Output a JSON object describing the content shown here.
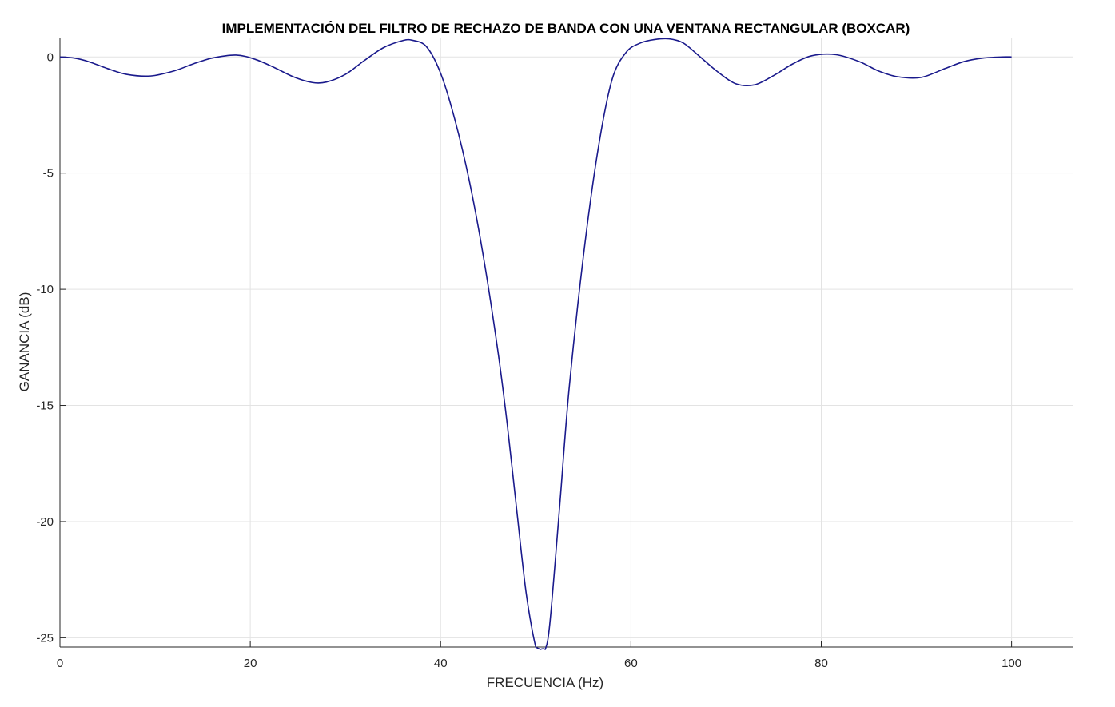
{
  "chart_data": {
    "type": "line",
    "title": "IMPLEMENTACIÓN DEL FILTRO DE RECHAZO DE BANDA CON UNA VENTANA RECTANGULAR (BOXCAR)",
    "xlabel": "FRECUENCIA (Hz)",
    "ylabel": "GANANCIA (dB)",
    "xlim": [
      0,
      106.5
    ],
    "ylim": [
      -25.4,
      0.8
    ],
    "xticks": [
      0,
      20,
      40,
      60,
      80,
      100
    ],
    "yticks": [
      0,
      -5,
      -10,
      -15,
      -20,
      -25
    ],
    "grid": true,
    "line_color": "#1a1a8c",
    "series": [
      {
        "x": [
          0,
          1.5,
          3,
          5,
          7,
          9.5,
          12,
          14,
          16,
          18.5,
          20.5,
          22.5,
          24.5,
          26.5,
          28,
          30,
          32,
          34,
          36,
          37,
          38.5,
          40,
          41.5,
          43,
          44.5,
          46,
          47,
          48,
          49,
          50,
          50.5,
          51,
          51.5,
          52.5,
          53.5,
          55,
          56.5,
          58,
          59.5,
          61,
          62.5,
          64,
          65.5,
          67,
          69,
          71,
          73,
          75,
          77,
          79,
          81.5,
          84,
          86,
          88,
          90.5,
          93,
          95,
          97,
          99,
          100
        ],
        "y": [
          0,
          -0.05,
          -0.2,
          -0.5,
          -0.75,
          -0.82,
          -0.6,
          -0.3,
          -0.05,
          0.08,
          -0.1,
          -0.45,
          -0.85,
          -1.1,
          -1.08,
          -0.75,
          -0.15,
          0.4,
          0.7,
          0.72,
          0.45,
          -0.7,
          -2.7,
          -5.3,
          -8.6,
          -12.6,
          -15.8,
          -19.5,
          -23.1,
          -25.4,
          -25.5,
          -25.5,
          -24.3,
          -19.4,
          -14.3,
          -8.6,
          -4.1,
          -1.0,
          0.2,
          0.6,
          0.75,
          0.78,
          0.6,
          0.1,
          -0.6,
          -1.15,
          -1.2,
          -0.8,
          -0.3,
          0.05,
          0.1,
          -0.2,
          -0.6,
          -0.85,
          -0.88,
          -0.5,
          -0.2,
          -0.05,
          0,
          0
        ]
      }
    ]
  }
}
